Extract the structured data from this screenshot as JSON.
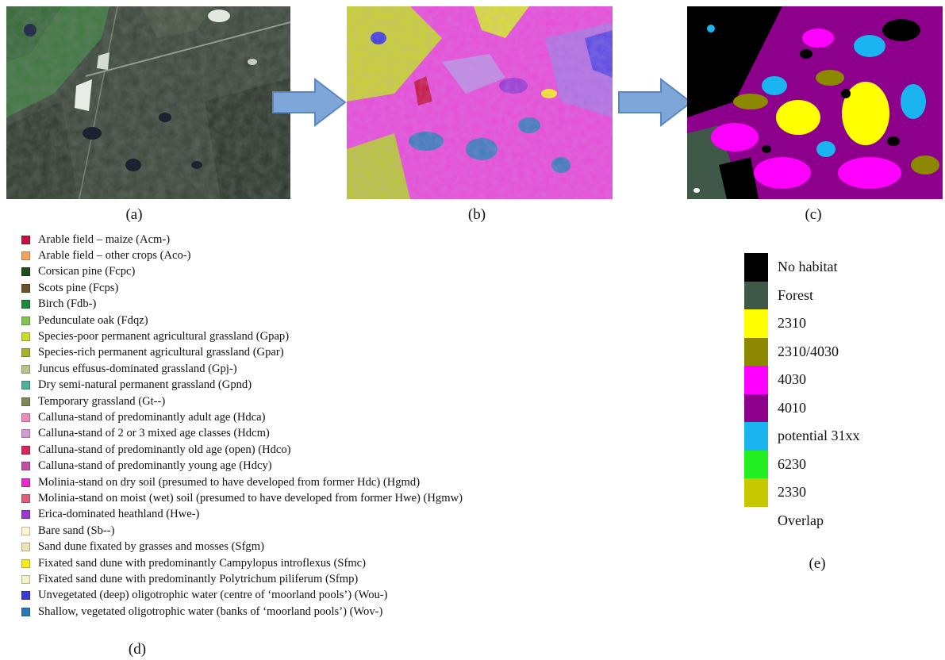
{
  "figure": {
    "captions": {
      "a": "(a)",
      "b": "(b)",
      "c": "(c)",
      "d": "(d)",
      "e": "(e)"
    }
  },
  "legend_d": [
    {
      "label": "Arable field – maize (Acm-)",
      "color": "#c8123e"
    },
    {
      "label": "Arable field – other crops (Aco-)",
      "color": "#f2a45c"
    },
    {
      "label": "Corsican pine (Fcpc)",
      "color": "#1f4d1f"
    },
    {
      "label": "Scots pine (Fcps)",
      "color": "#6b5428"
    },
    {
      "label": "Birch (Fdb-)",
      "color": "#1f8a3a"
    },
    {
      "label": "Pedunculate oak (Fdqz)",
      "color": "#7ec850"
    },
    {
      "label": "Species-poor permanent agricultural grassland (Gpap)",
      "color": "#c8dc28"
    },
    {
      "label": "Species-rich permanent agricultural grassland (Gpar)",
      "color": "#a9b02a"
    },
    {
      "label": "Juncus effusus-dominated grassland (Gpj-)",
      "color": "#b8c48e"
    },
    {
      "label": "Dry semi-natural permanent grassland (Gpnd)",
      "color": "#4fb09a"
    },
    {
      "label": "Temporary grassland (Gt--)",
      "color": "#7f8a52"
    },
    {
      "label": "Calluna-stand of predominantly adult age (Hdca)",
      "color": "#f08ab8"
    },
    {
      "label": "Calluna-stand of 2 or 3 mixed age classes (Hdcm)",
      "color": "#d49ad8"
    },
    {
      "label": "Calluna-stand of predominantly old age (open) (Hdco)",
      "color": "#d8285a"
    },
    {
      "label": "Calluna-stand of predominantly young age (Hdcy)",
      "color": "#c24ea6"
    },
    {
      "label": "Molinia-stand on dry soil (presumed to have developed from former Hdc) (Hgmd)",
      "color": "#ee28d0"
    },
    {
      "label": "Molinia-stand on moist (wet) soil (presumed to have developed from former Hwe) (Hgmw)",
      "color": "#e0607a"
    },
    {
      "label": "Erica-dominated heathland (Hwe-)",
      "color": "#9a3ad0"
    },
    {
      "label": "Bare sand (Sb--)",
      "color": "#fbf6cc"
    },
    {
      "label": "Sand dune fixated by grasses and mosses (Sfgm)",
      "color": "#ece4b4"
    },
    {
      "label": "Fixated sand dune with predominantly Campylopus introflexus (Sfmc)",
      "color": "#f8ec1a"
    },
    {
      "label": "Fixated sand dune with predominantly Polytrichum piliferum (Sfmp)",
      "color": "#f2f2c6"
    },
    {
      "label": "Unvegetated (deep) oligotrophic water (centre of ‘moorland pools’) (Wou-)",
      "color": "#3a3ad8"
    },
    {
      "label": "Shallow, vegetated oligotrophic water (banks of ‘moorland pools’) (Wov-)",
      "color": "#2a7ab8"
    }
  ],
  "legend_e": [
    {
      "label": "No habitat",
      "color": "#000000"
    },
    {
      "label": "Forest",
      "color": "#3f5848"
    },
    {
      "label": "2310",
      "color": "#ffff00"
    },
    {
      "label": "2310/4030",
      "color": "#8c8800"
    },
    {
      "label": "4030",
      "color": "#ff00ff"
    },
    {
      "label": "4010",
      "color": "#8c008c"
    },
    {
      "label": "potential 31xx",
      "color": "#1ab4f0"
    },
    {
      "label": "6230",
      "color": "#22ee22"
    },
    {
      "label": "2330",
      "color": "#c8c800"
    },
    {
      "label": "Overlap",
      "color": ""
    }
  ],
  "colors": {
    "arrow_fill": "#7ea6d8",
    "arrow_stroke": "#5a86bf"
  }
}
